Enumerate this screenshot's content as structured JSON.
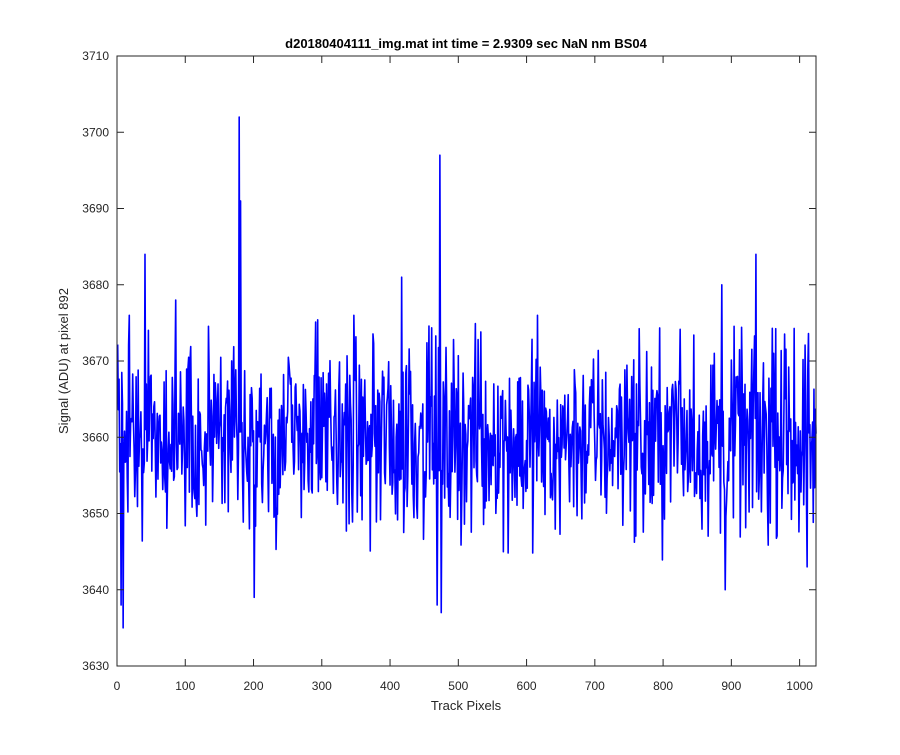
{
  "chart_data": {
    "type": "line",
    "title": "d20180404111_img.mat int time = 2.9309 sec  NaN nm BS04",
    "xlabel": "Track Pixels",
    "ylabel": "Signal (ADU) at pixel 892",
    "xlim": [
      0,
      1024
    ],
    "ylim": [
      3630,
      3710
    ],
    "xticks": [
      0,
      100,
      200,
      300,
      400,
      500,
      600,
      700,
      800,
      900,
      1000
    ],
    "yticks": [
      3630,
      3640,
      3650,
      3660,
      3670,
      3680,
      3690,
      3700,
      3710
    ],
    "grid": false,
    "legend": "none",
    "series": [
      {
        "color": "#0000ff",
        "mean": 3660,
        "noise_range": [
          3643,
          3676
        ],
        "spikes": [
          {
            "x": 5,
            "y": 3638
          },
          {
            "x": 8,
            "y": 3635
          },
          {
            "x": 40,
            "y": 3684
          },
          {
            "x": 85,
            "y": 3678
          },
          {
            "x": 178,
            "y": 3702
          },
          {
            "x": 180,
            "y": 3691
          },
          {
            "x": 200,
            "y": 3639
          },
          {
            "x": 468,
            "y": 3638
          },
          {
            "x": 472,
            "y": 3697
          },
          {
            "x": 474,
            "y": 3637
          },
          {
            "x": 416,
            "y": 3681
          },
          {
            "x": 885,
            "y": 3680
          },
          {
            "x": 890,
            "y": 3640
          },
          {
            "x": 935,
            "y": 3684
          },
          {
            "x": 1010,
            "y": 3643
          }
        ],
        "points": 1024
      }
    ]
  }
}
